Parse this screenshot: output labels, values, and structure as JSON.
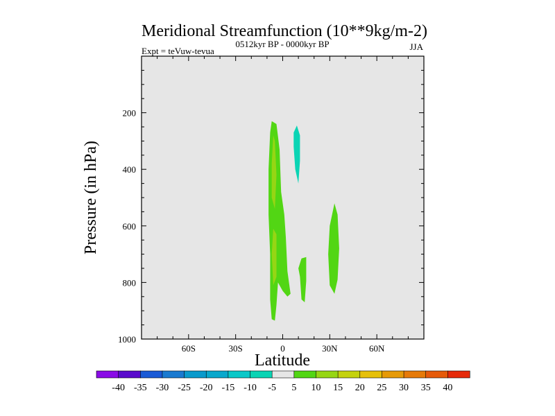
{
  "chart_data": {
    "type": "contour",
    "title": "Meridional Streamfunction (10**9kg/m-2)",
    "left_string": "Expt = teVuw-tevua",
    "center_string": "0512kyr BP - 0000kyr BP",
    "right_string": "JJA",
    "xlabel": "Latitude",
    "ylabel": "Pressure (in hPa)",
    "xlim": [
      -90,
      90
    ],
    "ylim": [
      0,
      1000
    ],
    "y_inverted": true,
    "background_level": "-5 to 5",
    "x_ticks": [
      {
        "value": -60,
        "label": "60S"
      },
      {
        "value": -30,
        "label": "30S"
      },
      {
        "value": 0,
        "label": "0"
      },
      {
        "value": 30,
        "label": "30N"
      },
      {
        "value": 60,
        "label": "60N"
      }
    ],
    "y_ticks": [
      {
        "value": 200,
        "label": "200"
      },
      {
        "value": 400,
        "label": "400"
      },
      {
        "value": 600,
        "label": "600"
      },
      {
        "value": 800,
        "label": "800"
      },
      {
        "value": 1000,
        "label": "1000"
      }
    ],
    "colorbar": {
      "levels": [
        "-40",
        "-35",
        "-30",
        "-25",
        "-20",
        "-15",
        "-10",
        "-5",
        "5",
        "10",
        "15",
        "20",
        "25",
        "30",
        "35",
        "40"
      ],
      "colors": [
        "#8a0ce6",
        "#5a0ccc",
        "#1a5ad6",
        "#1a7ad0",
        "#0a9acc",
        "#0aa8cc",
        "#0ac8c8",
        "#0ad4b4",
        "#e6e6e6",
        "#52d614",
        "#96d614",
        "#c4d20e",
        "#e6c00a",
        "#e69a08",
        "#e67a08",
        "#e65a0a",
        "#e62a0a"
      ]
    },
    "regions": [
      {
        "name": "band 5-10 near 2S",
        "color": "#52d614",
        "points": [
          [
            -7,
            230
          ],
          [
            -4,
            240
          ],
          [
            -2,
            330
          ],
          [
            -1,
            480
          ],
          [
            1,
            560
          ],
          [
            2,
            640
          ],
          [
            3,
            760
          ],
          [
            5,
            840
          ],
          [
            3,
            850
          ],
          [
            0,
            830
          ],
          [
            -3,
            800
          ],
          [
            -4,
            880
          ],
          [
            -5,
            935
          ],
          [
            -7,
            930
          ],
          [
            -8,
            860
          ],
          [
            -8,
            700
          ],
          [
            -9,
            560
          ],
          [
            -9,
            400
          ],
          [
            -8,
            270
          ]
        ]
      },
      {
        "name": "band 10-15 upper core",
        "color": "#96d614",
        "points": [
          [
            -6,
            280
          ],
          [
            -5,
            300
          ],
          [
            -4,
            420
          ],
          [
            -5,
            540
          ],
          [
            -7,
            500
          ],
          [
            -7,
            380
          ]
        ]
      },
      {
        "name": "band 10-15 lower core",
        "color": "#96d614",
        "points": [
          [
            -6,
            610
          ],
          [
            -4,
            630
          ],
          [
            -4,
            780
          ],
          [
            -6,
            810
          ],
          [
            -7,
            700
          ]
        ]
      },
      {
        "name": "band -10 to -5 near 10N",
        "color": "#0ad4b4",
        "points": [
          [
            9,
            245
          ],
          [
            11,
            280
          ],
          [
            11,
            370
          ],
          [
            10,
            450
          ],
          [
            8,
            400
          ],
          [
            7,
            320
          ],
          [
            7,
            270
          ]
        ]
      },
      {
        "name": "band 5-10 near 12N",
        "color": "#52d614",
        "points": [
          [
            12,
            715
          ],
          [
            15,
            710
          ],
          [
            15,
            795
          ],
          [
            14,
            870
          ],
          [
            12,
            860
          ],
          [
            11,
            780
          ],
          [
            10,
            750
          ]
        ]
      },
      {
        "name": "band 5-10 near 32N",
        "color": "#52d614",
        "points": [
          [
            33,
            520
          ],
          [
            35,
            560
          ],
          [
            36,
            680
          ],
          [
            35,
            790
          ],
          [
            33,
            840
          ],
          [
            30,
            810
          ],
          [
            29,
            700
          ],
          [
            30,
            600
          ]
        ]
      }
    ]
  }
}
